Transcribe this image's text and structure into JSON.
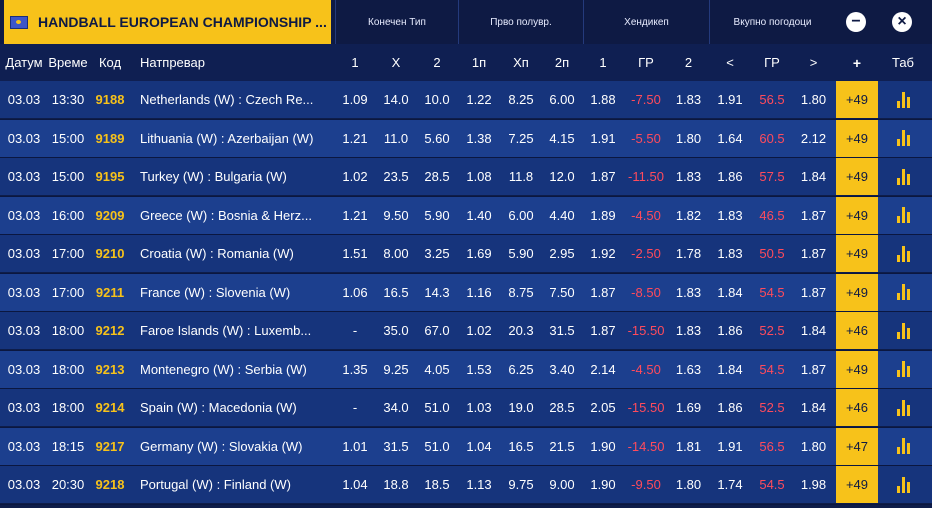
{
  "header": {
    "title": "HANDBALL EUROPEAN CHAMPIONSHIP ...",
    "groups": {
      "final": "Конечен Тип",
      "first_half": "Прво полувр.",
      "handicap": "Хендикеп",
      "total_goals": "Вкупно погодоци"
    },
    "minus_symbol": "−",
    "close_symbol": "×"
  },
  "columns": {
    "date": "Датум",
    "time": "Време",
    "code": "Код",
    "match": "Натпревар",
    "f1": "1",
    "fx": "X",
    "f2": "2",
    "h1": "1п",
    "hx": "Хп",
    "h2": "2п",
    "hc1": "1",
    "hcgr": "ГР",
    "hc2": "2",
    "lt": "<",
    "tgr": "ГР",
    "gt": ">",
    "plus": "+",
    "tab": "Таб"
  },
  "rows": [
    {
      "date": "03.03",
      "time": "13:30",
      "code": "9188",
      "match": "Netherlands (W) : Czech Re...",
      "f1": "1.09",
      "fx": "14.0",
      "f2": "10.0",
      "h1": "1.22",
      "hx": "8.25",
      "h2": "6.00",
      "hc1": "1.88",
      "hcgr": "-7.50",
      "hc2": "1.83",
      "lt": "1.91",
      "tgr": "56.5",
      "gt": "1.80",
      "more": "+49"
    },
    {
      "date": "03.03",
      "time": "15:00",
      "code": "9189",
      "match": "Lithuania (W) : Azerbaijan (W)",
      "f1": "1.21",
      "fx": "11.0",
      "f2": "5.60",
      "h1": "1.38",
      "hx": "7.25",
      "h2": "4.15",
      "hc1": "1.91",
      "hcgr": "-5.50",
      "hc2": "1.80",
      "lt": "1.64",
      "tgr": "60.5",
      "gt": "2.12",
      "more": "+49"
    },
    {
      "date": "03.03",
      "time": "15:00",
      "code": "9195",
      "match": "Turkey (W) : Bulgaria (W)",
      "f1": "1.02",
      "fx": "23.5",
      "f2": "28.5",
      "h1": "1.08",
      "hx": "11.8",
      "h2": "12.0",
      "hc1": "1.87",
      "hcgr": "-11.50",
      "hc2": "1.83",
      "lt": "1.86",
      "tgr": "57.5",
      "gt": "1.84",
      "more": "+49"
    },
    {
      "date": "03.03",
      "time": "16:00",
      "code": "9209",
      "match": "Greece (W) : Bosnia & Herz...",
      "f1": "1.21",
      "fx": "9.50",
      "f2": "5.90",
      "h1": "1.40",
      "hx": "6.00",
      "h2": "4.40",
      "hc1": "1.89",
      "hcgr": "-4.50",
      "hc2": "1.82",
      "lt": "1.83",
      "tgr": "46.5",
      "gt": "1.87",
      "more": "+49"
    },
    {
      "date": "03.03",
      "time": "17:00",
      "code": "9210",
      "match": "Croatia (W) : Romania (W)",
      "f1": "1.51",
      "fx": "8.00",
      "f2": "3.25",
      "h1": "1.69",
      "hx": "5.90",
      "h2": "2.95",
      "hc1": "1.92",
      "hcgr": "-2.50",
      "hc2": "1.78",
      "lt": "1.83",
      "tgr": "50.5",
      "gt": "1.87",
      "more": "+49"
    },
    {
      "date": "03.03",
      "time": "17:00",
      "code": "9211",
      "match": "France (W) : Slovenia (W)",
      "f1": "1.06",
      "fx": "16.5",
      "f2": "14.3",
      "h1": "1.16",
      "hx": "8.75",
      "h2": "7.50",
      "hc1": "1.87",
      "hcgr": "-8.50",
      "hc2": "1.83",
      "lt": "1.84",
      "tgr": "54.5",
      "gt": "1.87",
      "more": "+49"
    },
    {
      "date": "03.03",
      "time": "18:00",
      "code": "9212",
      "match": "Faroe Islands (W) : Luxemb...",
      "f1": "-",
      "fx": "35.0",
      "f2": "67.0",
      "h1": "1.02",
      "hx": "20.3",
      "h2": "31.5",
      "hc1": "1.87",
      "hcgr": "-15.50",
      "hc2": "1.83",
      "lt": "1.86",
      "tgr": "52.5",
      "gt": "1.84",
      "more": "+46"
    },
    {
      "date": "03.03",
      "time": "18:00",
      "code": "9213",
      "match": "Montenegro (W) : Serbia (W)",
      "f1": "1.35",
      "fx": "9.25",
      "f2": "4.05",
      "h1": "1.53",
      "hx": "6.25",
      "h2": "3.40",
      "hc1": "2.14",
      "hcgr": "-4.50",
      "hc2": "1.63",
      "lt": "1.84",
      "tgr": "54.5",
      "gt": "1.87",
      "more": "+49"
    },
    {
      "date": "03.03",
      "time": "18:00",
      "code": "9214",
      "match": "Spain (W) : Macedonia (W)",
      "f1": "-",
      "fx": "34.0",
      "f2": "51.0",
      "h1": "1.03",
      "hx": "19.0",
      "h2": "28.5",
      "hc1": "2.05",
      "hcgr": "-15.50",
      "hc2": "1.69",
      "lt": "1.86",
      "tgr": "52.5",
      "gt": "1.84",
      "more": "+46"
    },
    {
      "date": "03.03",
      "time": "18:15",
      "code": "9217",
      "match": "Germany (W) : Slovakia (W)",
      "f1": "1.01",
      "fx": "31.5",
      "f2": "51.0",
      "h1": "1.04",
      "hx": "16.5",
      "h2": "21.5",
      "hc1": "1.90",
      "hcgr": "-14.50",
      "hc2": "1.81",
      "lt": "1.91",
      "tgr": "56.5",
      "gt": "1.80",
      "more": "+47"
    },
    {
      "date": "03.03",
      "time": "20:30",
      "code": "9218",
      "match": "Portugal (W) : Finland (W)",
      "f1": "1.04",
      "fx": "18.8",
      "f2": "18.5",
      "h1": "1.13",
      "hx": "9.75",
      "h2": "9.00",
      "hc1": "1.90",
      "hcgr": "-9.50",
      "hc2": "1.80",
      "lt": "1.74",
      "tgr": "54.5",
      "gt": "1.98",
      "more": "+49"
    }
  ],
  "colors": {
    "accent": "#f7c21a",
    "row_a": "#16347c",
    "row_b": "#1c3f8e",
    "negative": "#ff4b5c",
    "background": "#0e1d4a"
  },
  "icons": {
    "flag": "eu-flag-icon",
    "stats": "bar-chart-icon",
    "minus": "minus-circle-icon",
    "close": "close-circle-icon"
  }
}
